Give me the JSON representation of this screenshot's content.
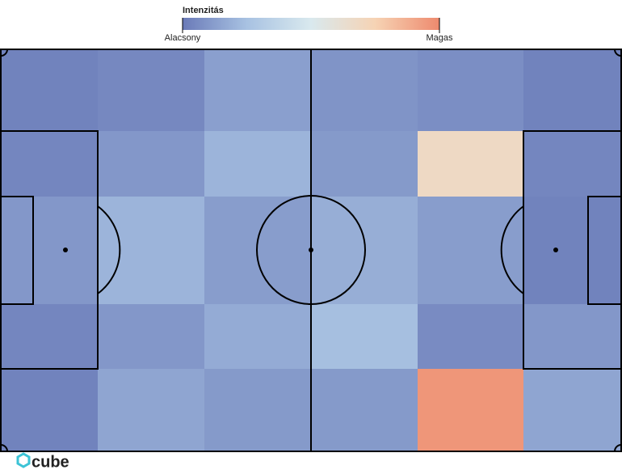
{
  "chart_data": {
    "type": "heatmap",
    "title": "Intenzitás",
    "colormap": [
      "#6a7ab8",
      "#a8c2e2",
      "#d9e9ee",
      "#f6d3b4",
      "#ee8a6e"
    ],
    "clim": [
      0,
      1
    ],
    "cticks": [
      {
        "value": 0,
        "label": "Alacsony"
      },
      {
        "value": 1,
        "label": "Magas"
      }
    ],
    "values": [
      [
        0.03,
        0.05,
        0.13,
        0.09,
        0.07,
        0.03
      ],
      [
        0.04,
        0.1,
        0.2,
        0.11,
        0.68,
        0.04
      ],
      [
        0.1,
        0.2,
        0.12,
        0.18,
        0.12,
        0.03
      ],
      [
        0.04,
        0.1,
        0.17,
        0.24,
        0.06,
        0.1
      ],
      [
        0.03,
        0.15,
        0.11,
        0.11,
        0.96,
        0.15
      ]
    ]
  },
  "brand": "cube"
}
